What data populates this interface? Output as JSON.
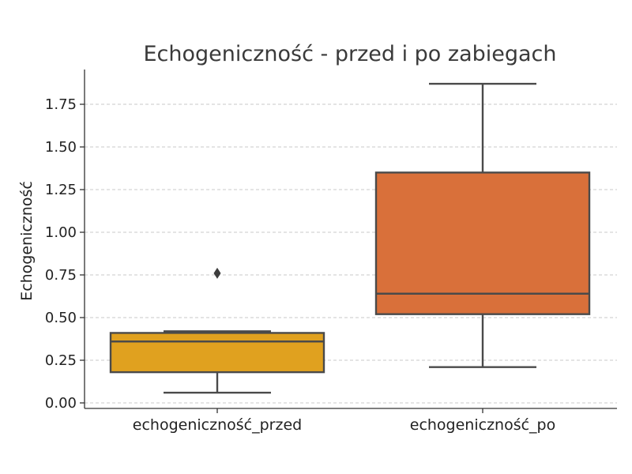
{
  "chart_data": {
    "type": "box",
    "title": "Echogeniczność - przed i po zabiegach",
    "xlabel": "",
    "ylabel": "Echogeniczność",
    "ylim": [
      -0.02,
      1.95
    ],
    "yticks": [
      0.0,
      0.25,
      0.5,
      0.75,
      1.0,
      1.25,
      1.5,
      1.75
    ],
    "ytick_labels": [
      "0.00",
      "0.25",
      "0.50",
      "0.75",
      "1.00",
      "1.25",
      "1.50",
      "1.75"
    ],
    "grid": "y-dashed",
    "categories": [
      "echogeniczność_przed",
      "echogeniczność_po"
    ],
    "boxes": [
      {
        "category": "echogeniczność_przed",
        "whisker_low": 0.06,
        "q1": 0.18,
        "median": 0.36,
        "q3": 0.41,
        "whisker_high": 0.42,
        "outliers": [
          0.76
        ],
        "color": "#E0A11F"
      },
      {
        "category": "echogeniczność_po",
        "whisker_low": 0.21,
        "q1": 0.52,
        "median": 0.64,
        "q3": 1.35,
        "whisker_high": 1.87,
        "outliers": [],
        "color": "#D9703A"
      }
    ]
  }
}
